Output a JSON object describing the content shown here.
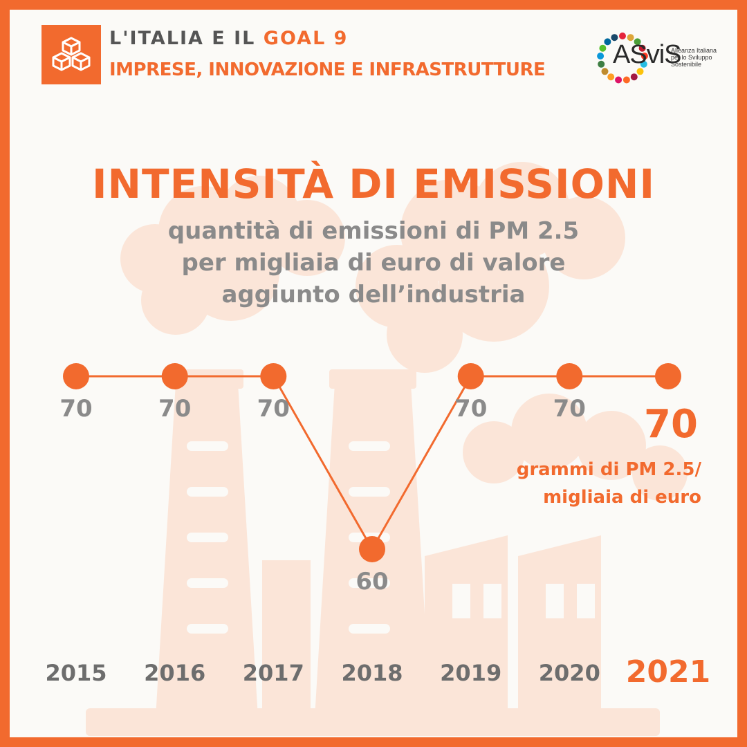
{
  "header": {
    "goal_prefix": "L'ITALIA E IL",
    "goal_label": "GOAL 9",
    "goal_subtitle": "IMPRESE, INNOVAZIONE E INFRASTRUTTURE",
    "goal_icon": "cubes-icon"
  },
  "logo": {
    "name": "ASviS",
    "tagline_1": "Alleanza Italiana",
    "tagline_2": "per lo Sviluppo",
    "tagline_3": "Sostenibile",
    "ring_colors": [
      "#e5243b",
      "#dda63a",
      "#4c9f38",
      "#c5192d",
      "#ff3a21",
      "#26bde2",
      "#fcc30b",
      "#a21942",
      "#fd6925",
      "#dd1367",
      "#fd9d24",
      "#bf8b2e",
      "#3f7e44",
      "#0a97d9",
      "#56c02b",
      "#00689d",
      "#19486a"
    ]
  },
  "title": "INTENSITÀ DI EMISSIONI",
  "subtitle_lines": [
    "quantità di emissioni di PM 2.5",
    "per migliaia di euro di valore",
    "aggiunto dell’industria"
  ],
  "unit_lines": [
    "grammi di PM 2.5/",
    "migliaia di euro"
  ],
  "colors": {
    "accent": "#f26a2e",
    "grey": "#8a8a8a",
    "dark_grey": "#6d6d6d",
    "background": "#fbfaf7",
    "illustration": "#fbe5d8"
  },
  "chart_data": {
    "type": "line",
    "x": [
      "2015",
      "2016",
      "2017",
      "2018",
      "2019",
      "2020",
      "2021"
    ],
    "values": [
      70,
      70,
      70,
      60,
      70,
      70,
      70
    ],
    "value_labels": [
      "70",
      "70",
      "70",
      "60",
      "70",
      "70",
      "70"
    ],
    "highlight_last": true,
    "ylim": [
      60,
      70
    ],
    "grid": false,
    "legend": "none"
  }
}
